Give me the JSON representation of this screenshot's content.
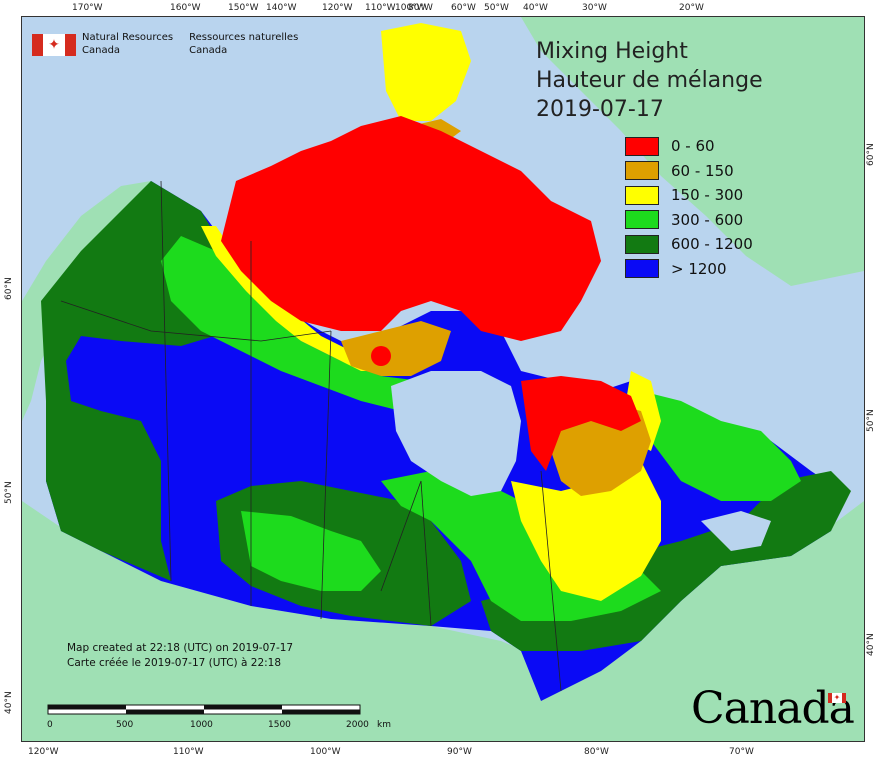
{
  "title": {
    "line1": "Mixing Height",
    "line2": "Hauteur de mélange",
    "date": "2019-07-17"
  },
  "agency": {
    "en_line1": "Natural Resources",
    "en_line2": "Canada",
    "fr_line1": "Ressources naturelles",
    "fr_line2": "Canada"
  },
  "legend": {
    "items": [
      {
        "label": "0 - 60",
        "color": "#ff0000"
      },
      {
        "label": "60 - 150",
        "color": "#dea000"
      },
      {
        "label": "150 - 300",
        "color": "#ffff00"
      },
      {
        "label": "300 - 600",
        "color": "#1ddb1d"
      },
      {
        "label": "600 - 1200",
        "color": "#127a12"
      },
      {
        "label": "> 1200",
        "color": "#0a0af5"
      }
    ]
  },
  "credits": {
    "en": "Map created at 22:18 (UTC) on 2019-07-17",
    "fr": "Carte créée le 2019-07-17 (UTC) à 22:18"
  },
  "scale": {
    "labels": [
      "0",
      "500",
      "1000",
      "1500",
      "2000"
    ],
    "unit": "km"
  },
  "graticule": {
    "top": [
      "170°W",
      "160°W",
      "150°W",
      "140°W",
      "120°W",
      "110°W",
      "100°W",
      "80°W",
      "60°W",
      "50°W",
      "40°W",
      "30°W",
      "20°W"
    ],
    "bottom": [
      "120°W",
      "110°W",
      "100°W",
      "90°W",
      "80°W",
      "70°W"
    ],
    "left": [
      "60°N",
      "50°N",
      "40°N"
    ],
    "right": [
      "60°N",
      "50°N",
      "40°N"
    ]
  },
  "wordmark": "Canada",
  "colors": {
    "ocean": "#b9d4ee",
    "foreign_land": "#9fe0b4",
    "border": "#333333"
  }
}
